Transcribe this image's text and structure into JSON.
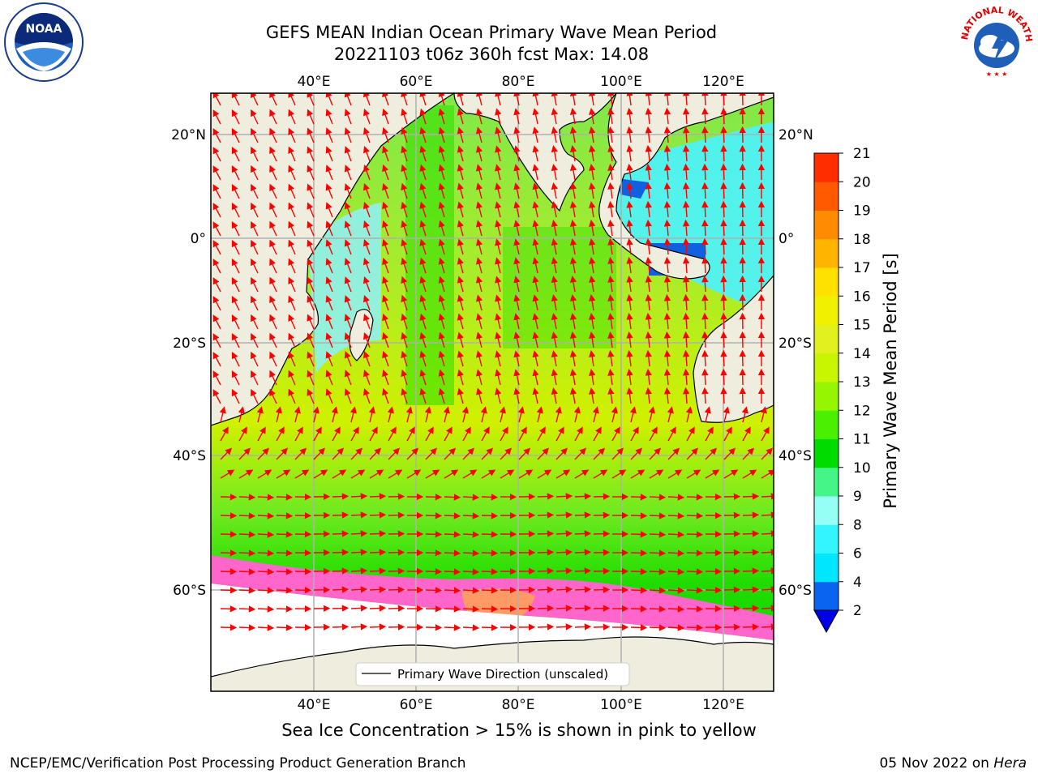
{
  "title_line1": "GEFS MEAN Indian Ocean Primary Wave Mean Period",
  "title_line2": "20221103 t06z 360h fcst   Max: 14.08",
  "lon_labels": [
    "40°E",
    "60°E",
    "80°E",
    "100°E",
    "120°E"
  ],
  "lat_labels": [
    "20°N",
    "0°",
    "20°S",
    "40°S",
    "60°S"
  ],
  "colorbar": {
    "label": "Primary Wave Mean Period [s]",
    "ticks": [
      "2",
      "4",
      "6",
      "8",
      "9",
      "10",
      "11",
      "12",
      "13",
      "14",
      "15",
      "16",
      "17",
      "18",
      "19",
      "20",
      "21"
    ],
    "colors": [
      "#0a64f0",
      "#00e6ff",
      "#32f5ff",
      "#96fff5",
      "#46f587",
      "#00dc00",
      "#4bf000",
      "#96f500",
      "#c8f500",
      "#e1f01e",
      "#f0f000",
      "#ffe100",
      "#ffb400",
      "#ff8c00",
      "#ff5a00",
      "#ff2d00"
    ],
    "extend_color": "#0000e6"
  },
  "legend": {
    "label": "Primary Wave Direction (unscaled)"
  },
  "caption": "Sea Ice Concentration > 15% is shown in pink to yellow",
  "footer_left": "NCEP/EMC/Verification Post Processing Product Generation Branch",
  "footer_date": "05 Nov 2022 on",
  "footer_host": "Hera",
  "logos": {
    "noaa_text": "NOAA",
    "nws_text": "NATIONAL WEATHER SERVICE"
  },
  "colors": {
    "land": "#efedde",
    "arrow": "#ff0000",
    "ice": "#ff66cc"
  }
}
